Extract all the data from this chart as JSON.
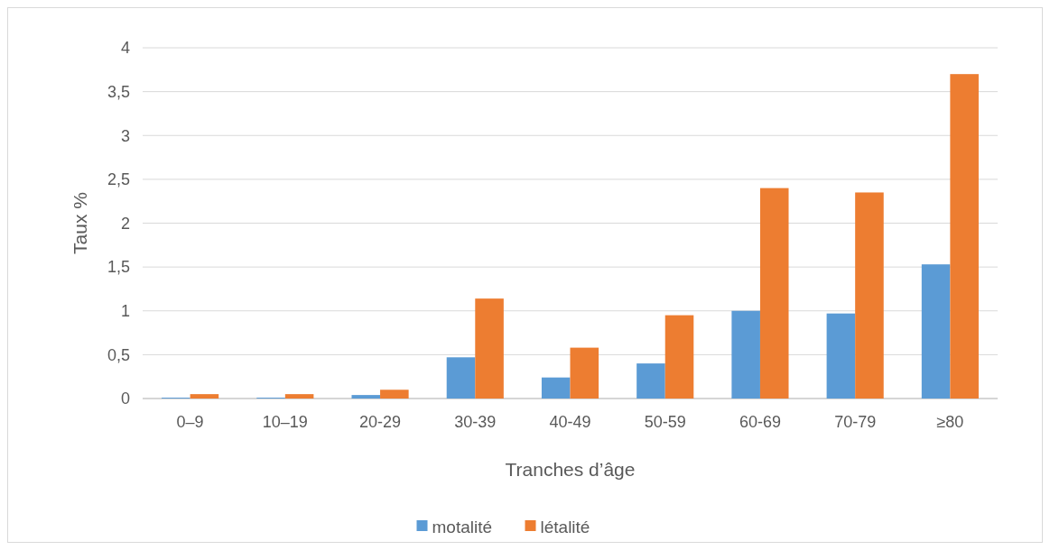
{
  "chart_data": {
    "type": "bar",
    "xlabel": "Tranches d’âge",
    "ylabel": "Taux %",
    "categories": [
      "0–9",
      "10–19",
      "20-29",
      "30-39",
      "40-49",
      "50-59",
      "60-69",
      "70-79",
      "≥80"
    ],
    "series": [
      {
        "name": "motalité",
        "color": "#5b9bd5",
        "values": [
          0.01,
          0.01,
          0.04,
          0.47,
          0.24,
          0.4,
          1.0,
          0.97,
          1.53
        ]
      },
      {
        "name": "létalité",
        "color": "#ed7d31",
        "values": [
          0.05,
          0.05,
          0.1,
          1.14,
          0.58,
          0.95,
          2.4,
          2.35,
          3.7
        ]
      }
    ],
    "ylim": [
      0,
      4
    ],
    "yticks": [
      0,
      {
        "value": 0.5,
        "label": "0,5"
      },
      1,
      {
        "value": 1.5,
        "label": "1,5"
      },
      2,
      {
        "value": 2.5,
        "label": "2,5"
      },
      3,
      {
        "value": 3.5,
        "label": "3,5"
      },
      4
    ],
    "grid": "y",
    "legend": "bottom"
  }
}
